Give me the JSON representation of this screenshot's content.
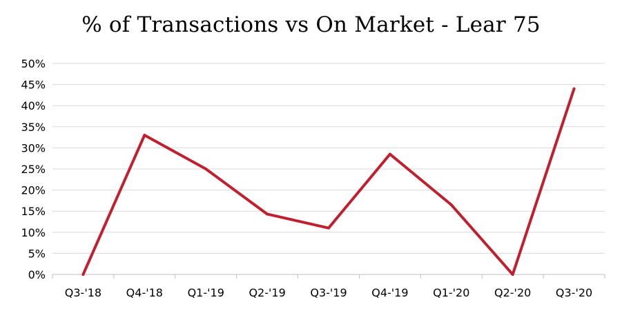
{
  "chart_data": {
    "type": "line",
    "title": "% of Transactions vs On Market - Lear 75",
    "xlabel": "",
    "ylabel": "",
    "categories": [
      "Q3-'18",
      "Q4-'18",
      "Q1-'19",
      "Q2-'19",
      "Q3-'19",
      "Q4-'19",
      "Q1-'20",
      "Q2-'20",
      "Q3-'20"
    ],
    "series": [
      {
        "values": [
          0,
          33,
          25,
          14.3,
          11,
          28.5,
          16.5,
          0,
          44
        ],
        "color": "#c0202e"
      }
    ],
    "ylim": [
      0,
      50
    ],
    "yticks": [
      0,
      5,
      10,
      15,
      20,
      25,
      30,
      35,
      40,
      45,
      50
    ],
    "ytick_labels": [
      "0%",
      "5%",
      "10%",
      "15%",
      "20%",
      "25%",
      "30%",
      "35%",
      "40%",
      "45%",
      "50%"
    ],
    "grid": true,
    "legend": "none"
  }
}
